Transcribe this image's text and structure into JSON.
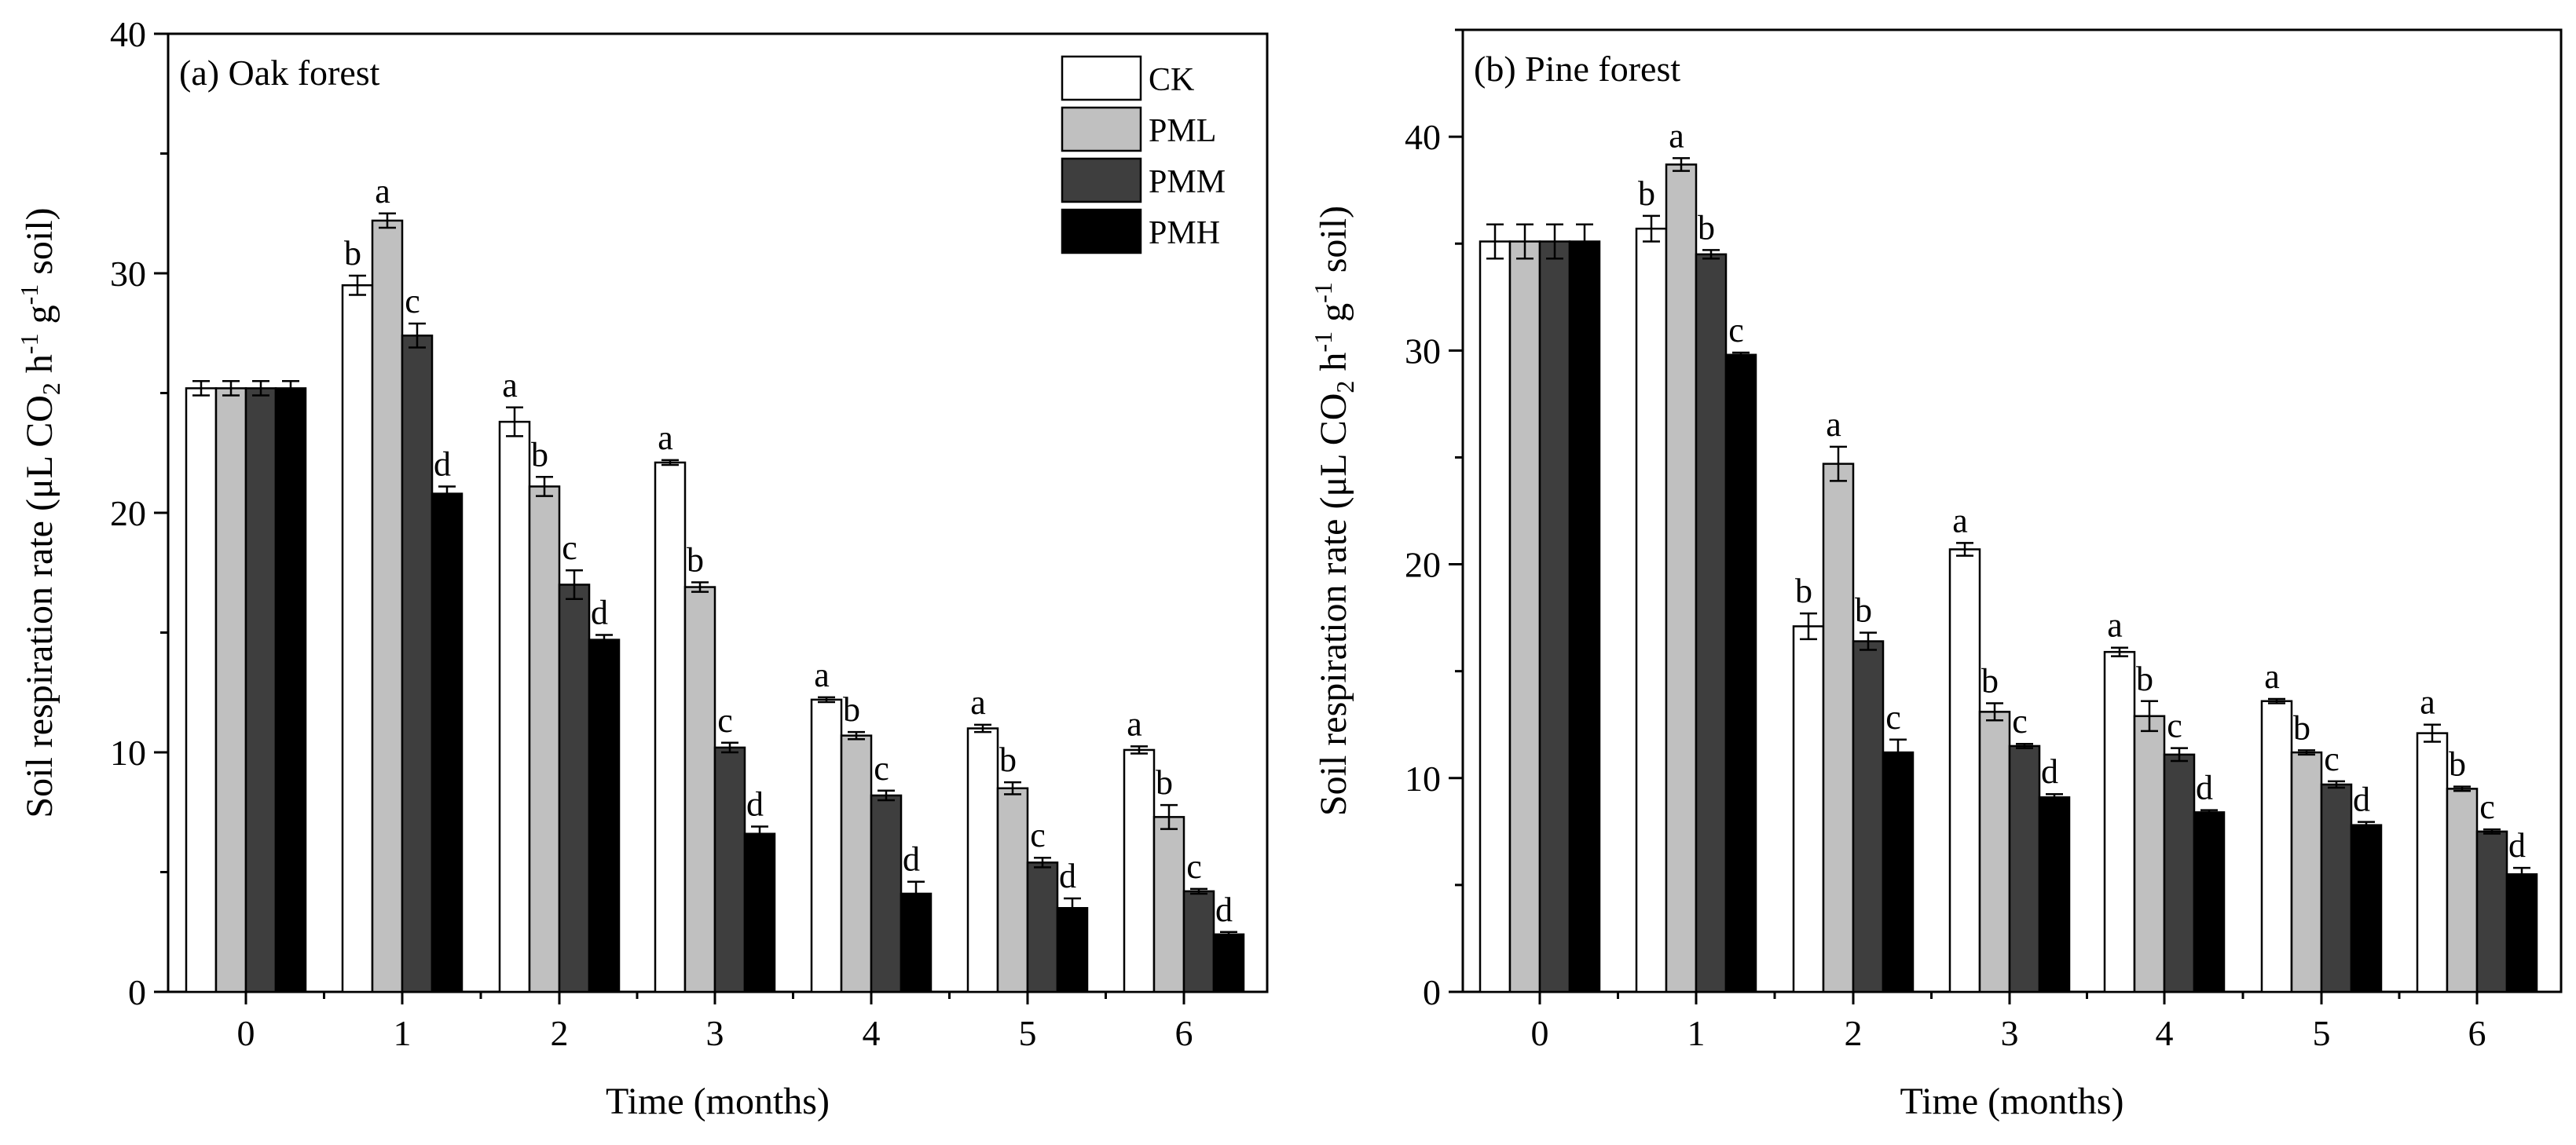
{
  "chart_data": [
    {
      "type": "bar",
      "title": "(a) Oak forest",
      "xlabel": "Time (months)",
      "ylabel": "Soil respiration rate (µL CO2 h-1 g-1 soil)",
      "ylabel_parts": {
        "pre": "Soil respiration rate (μL CO",
        "sub": "2",
        "mid1": " h",
        "sup1": "-1",
        "mid2": " g",
        "sup2": "-1",
        "post": " soil)"
      },
      "ylim": [
        0,
        40
      ],
      "yticks": [
        0,
        10,
        20,
        30,
        40
      ],
      "categories": [
        "0",
        "1",
        "2",
        "3",
        "4",
        "5",
        "6"
      ],
      "legend_position": "top-right",
      "series": [
        {
          "name": "CK",
          "color": "#ffffff",
          "values": [
            25.2,
            29.5,
            23.8,
            22.1,
            12.2,
            11.0,
            10.1
          ],
          "errors": [
            0.3,
            0.4,
            0.6,
            0.1,
            0.1,
            0.15,
            0.15
          ],
          "letters": [
            "",
            "b",
            "a",
            "a",
            "a",
            "a",
            "a"
          ]
        },
        {
          "name": "PML",
          "color": "#c0c0c0",
          "values": [
            25.2,
            32.2,
            21.1,
            16.9,
            10.7,
            8.5,
            7.3
          ],
          "errors": [
            0.3,
            0.3,
            0.4,
            0.2,
            0.15,
            0.25,
            0.5
          ],
          "letters": [
            "",
            "a",
            "b",
            "b",
            "b",
            "b",
            "b"
          ]
        },
        {
          "name": "PMM",
          "color": "#3e3e3e",
          "values": [
            25.2,
            27.4,
            17.0,
            10.2,
            8.2,
            5.4,
            4.2
          ],
          "errors": [
            0.3,
            0.5,
            0.6,
            0.2,
            0.2,
            0.2,
            0.1
          ],
          "letters": [
            "",
            "c",
            "c",
            "c",
            "c",
            "c",
            "c"
          ]
        },
        {
          "name": "PMH",
          "color": "#000000",
          "values": [
            25.2,
            20.8,
            14.7,
            6.6,
            4.1,
            3.5,
            2.4
          ],
          "errors": [
            0.3,
            0.3,
            0.2,
            0.3,
            0.5,
            0.4,
            0.1
          ],
          "letters": [
            "",
            "d",
            "d",
            "d",
            "d",
            "d",
            "d"
          ]
        }
      ]
    },
    {
      "type": "bar",
      "title": "(b) Pine forest",
      "xlabel": "Time (months)",
      "ylabel": "Soil respiration rate (µL CO2 h-1 g-1 soil)",
      "ylabel_parts": {
        "pre": "Soil respiration rate (μL CO",
        "sub": "2",
        "mid1": " h",
        "sup1": "-1",
        "mid2": " g",
        "sup2": "-1",
        "post": " soil)"
      },
      "ylim": [
        0,
        45
      ],
      "yticks": [
        0,
        10,
        20,
        30,
        40
      ],
      "categories": [
        "0",
        "1",
        "2",
        "3",
        "4",
        "5",
        "6"
      ],
      "series": [
        {
          "name": "CK",
          "color": "#ffffff",
          "values": [
            35.1,
            35.7,
            17.1,
            20.7,
            15.9,
            13.6,
            12.1
          ],
          "errors": [
            0.8,
            0.6,
            0.6,
            0.3,
            0.2,
            0.1,
            0.4
          ],
          "letters": [
            "",
            "b",
            "b",
            "a",
            "a",
            "a",
            "a"
          ]
        },
        {
          "name": "PML",
          "color": "#c0c0c0",
          "values": [
            35.1,
            38.7,
            24.7,
            13.1,
            12.9,
            11.2,
            9.5
          ],
          "errors": [
            0.8,
            0.3,
            0.8,
            0.4,
            0.7,
            0.1,
            0.1
          ],
          "letters": [
            "",
            "a",
            "a",
            "b",
            "b",
            "b",
            "b"
          ]
        },
        {
          "name": "PMM",
          "color": "#3e3e3e",
          "values": [
            35.1,
            34.5,
            16.4,
            11.5,
            11.1,
            9.7,
            7.5
          ],
          "errors": [
            0.8,
            0.2,
            0.4,
            0.1,
            0.3,
            0.15,
            0.1
          ],
          "letters": [
            "",
            "b",
            "b",
            "c",
            "c",
            "c",
            "c"
          ]
        },
        {
          "name": "PMH",
          "color": "#000000",
          "values": [
            35.1,
            29.8,
            11.2,
            9.1,
            8.4,
            7.8,
            5.5
          ],
          "errors": [
            0.8,
            0.1,
            0.6,
            0.15,
            0.1,
            0.15,
            0.3
          ],
          "letters": [
            "",
            "c",
            "c",
            "d",
            "d",
            "d",
            "d"
          ]
        }
      ]
    }
  ]
}
